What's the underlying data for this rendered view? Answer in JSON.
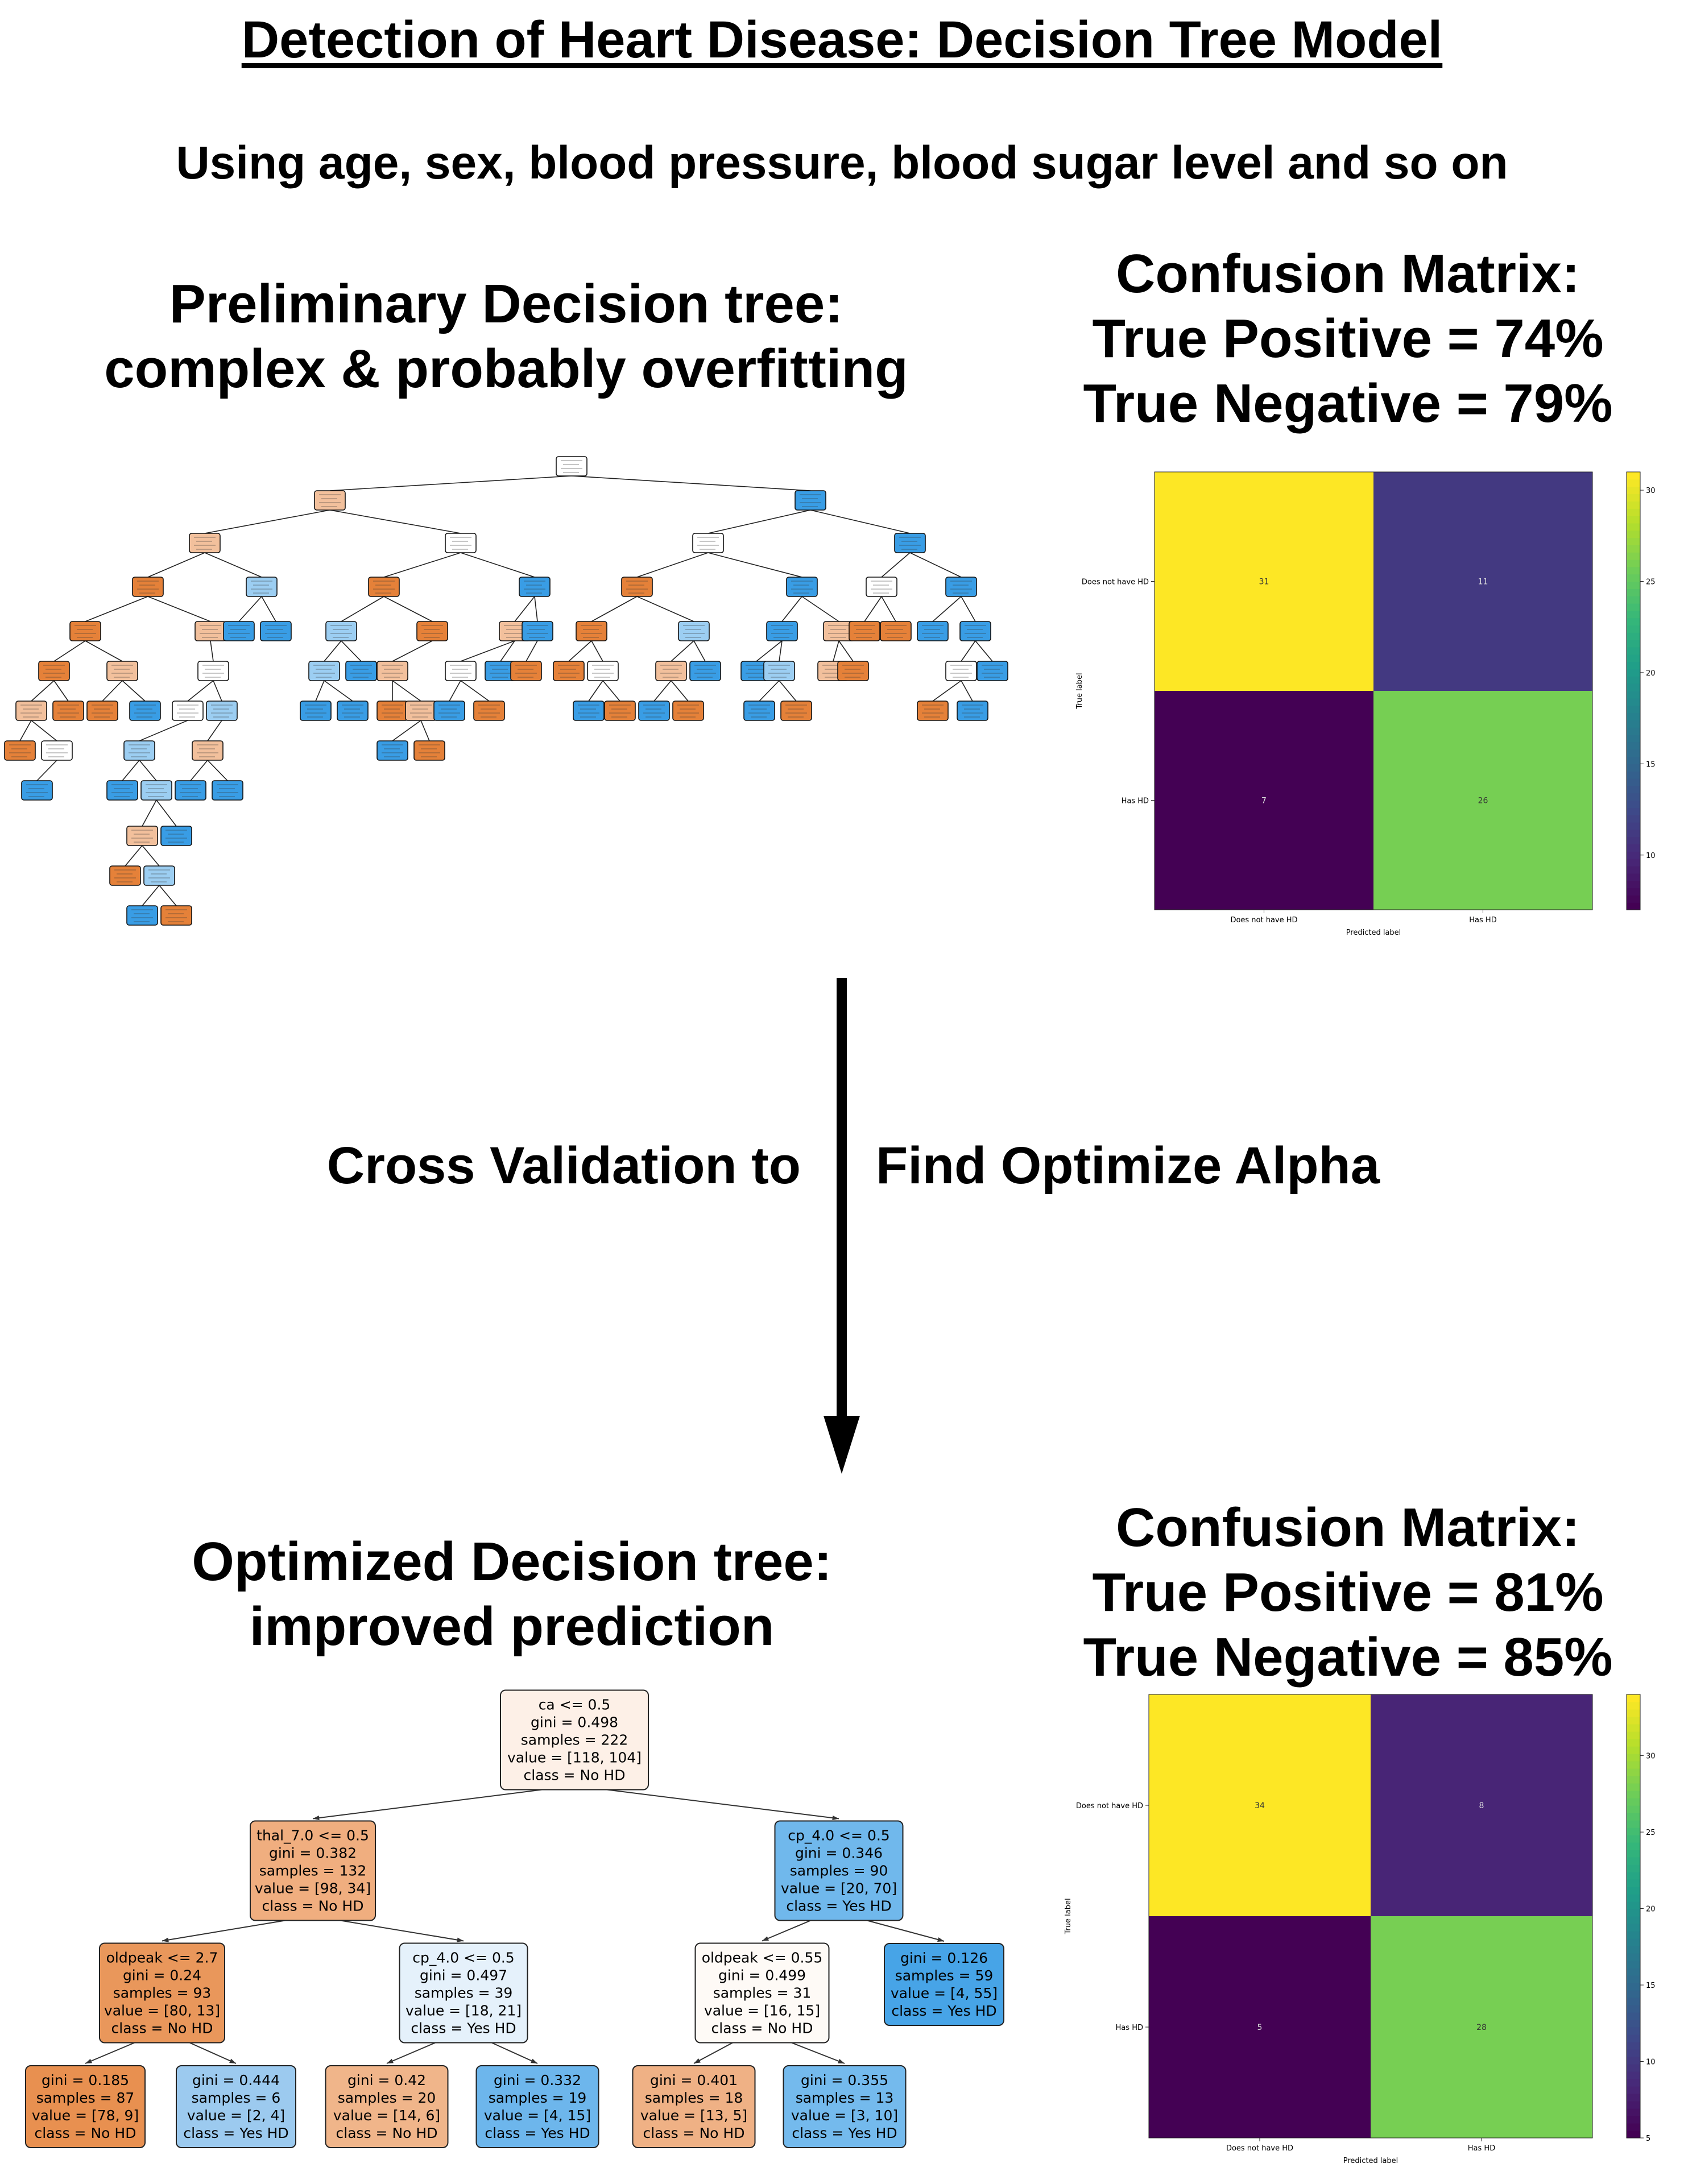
{
  "title": "Detection of Heart Disease: Decision Tree Model",
  "subtitle": "Using age, sex, blood pressure, blood sugar level and so on",
  "preliminary": {
    "heading_lines": [
      "Preliminary Decision tree:",
      "complex & probably overfitting"
    ]
  },
  "preliminary_matrix": {
    "heading_lines": [
      "Confusion Matrix:",
      "True Positive = 74%",
      "True Negative = 79%"
    ],
    "row_labels": [
      "Does not have HD",
      "Has HD"
    ],
    "col_labels": [
      "Does not have HD",
      "Has HD"
    ],
    "xlabel": "Predicted label",
    "ylabel": "True label",
    "cells": [
      [
        31,
        11
      ],
      [
        7,
        26
      ]
    ],
    "colorbar_ticks": [
      10,
      15,
      20,
      25,
      30
    ],
    "colorbar_range": [
      7,
      31
    ]
  },
  "transition": {
    "left_text": "Cross Validation to",
    "right_text": "Find Optimize Alpha"
  },
  "optimized": {
    "heading_lines": [
      "Optimized Decision tree:",
      "improved prediction"
    ]
  },
  "optimized_matrix": {
    "heading_lines": [
      "Confusion Matrix:",
      "True Positive = 81%",
      "True Negative = 85%"
    ],
    "row_labels": [
      "Does not have HD",
      "Has HD"
    ],
    "col_labels": [
      "Does not have HD",
      "Has HD"
    ],
    "xlabel": "Predicted label",
    "ylabel": "True label",
    "cells": [
      [
        34,
        8
      ],
      [
        5,
        28
      ]
    ],
    "colorbar_ticks": [
      5,
      10,
      15,
      20,
      25,
      30
    ],
    "colorbar_range": [
      5,
      34
    ]
  },
  "optimized_tree": {
    "colors": {
      "no_hd_dark": "#e89050",
      "no_hd_light": "#f3b88e",
      "no_hd_pale": "#fdf0e7",
      "yes_hd_dark": "#52a6e8",
      "yes_hd_light": "#9ccaef",
      "yes_hd_pale": "#e5f1fb",
      "neutral": "#fefaf6"
    },
    "nodes": [
      {
        "id": "root",
        "lines": [
          "ca <= 0.5",
          "gini = 0.498",
          "samples = 222",
          "value = [118, 104]",
          "class = No HD"
        ],
        "color": "#fdf0e7"
      },
      {
        "id": "n1",
        "lines": [
          "thal_7.0 <= 0.5",
          "gini = 0.382",
          "samples = 132",
          "value = [98, 34]",
          "class = No HD"
        ],
        "color": "#f0ae7f"
      },
      {
        "id": "n2",
        "lines": [
          "cp_4.0 <= 0.5",
          "gini = 0.346",
          "samples = 90",
          "value = [20, 70]",
          "class = Yes HD"
        ],
        "color": "#70b8ec"
      },
      {
        "id": "n3",
        "lines": [
          "oldpeak <= 2.7",
          "gini = 0.24",
          "samples = 93",
          "value = [80, 13]",
          "class = No HD"
        ],
        "color": "#e9975b"
      },
      {
        "id": "n4",
        "lines": [
          "cp_4.0 <= 0.5",
          "gini = 0.497",
          "samples = 39",
          "value = [18, 21]",
          "class = Yes HD"
        ],
        "color": "#e5f1fb"
      },
      {
        "id": "n5",
        "lines": [
          "oldpeak <= 0.55",
          "gini = 0.499",
          "samples = 31",
          "value = [16, 15]",
          "class = No HD"
        ],
        "color": "#fefaf6"
      },
      {
        "id": "n6",
        "lines": [
          "gini = 0.126",
          "samples = 59",
          "value = [4, 55]",
          "class = Yes HD"
        ],
        "color": "#47a4e7"
      },
      {
        "id": "n7",
        "lines": [
          "gini = 0.185",
          "samples = 87",
          "value = [78, 9]",
          "class = No HD"
        ],
        "color": "#e89050"
      },
      {
        "id": "n8",
        "lines": [
          "gini = 0.444",
          "samples = 6",
          "value = [2, 4]",
          "class = Yes HD"
        ],
        "color": "#9ccaef"
      },
      {
        "id": "n9",
        "lines": [
          "gini = 0.42",
          "samples = 20",
          "value = [14, 6]",
          "class = No HD"
        ],
        "color": "#f0b58a"
      },
      {
        "id": "n10",
        "lines": [
          "gini = 0.332",
          "samples = 19",
          "value = [4, 15]",
          "class = Yes HD"
        ],
        "color": "#6db6ec"
      },
      {
        "id": "n11",
        "lines": [
          "gini = 0.401",
          "samples = 18",
          "value = [13, 5]",
          "class = No HD"
        ],
        "color": "#efb185"
      },
      {
        "id": "n12",
        "lines": [
          "gini = 0.355",
          "samples = 13",
          "value = [3, 10]",
          "class = Yes HD"
        ],
        "color": "#74baed"
      }
    ],
    "edges": [
      [
        "root",
        "n1"
      ],
      [
        "root",
        "n2"
      ],
      [
        "n1",
        "n3"
      ],
      [
        "n1",
        "n4"
      ],
      [
        "n2",
        "n5"
      ],
      [
        "n2",
        "n6"
      ],
      [
        "n3",
        "n7"
      ],
      [
        "n3",
        "n8"
      ],
      [
        "n4",
        "n9"
      ],
      [
        "n4",
        "n10"
      ],
      [
        "n5",
        "n11"
      ],
      [
        "n5",
        "n12"
      ]
    ]
  },
  "preliminary_tree": {
    "colors": {
      "no_hd": "#e58139",
      "no_hd_light": "#f2c09c",
      "yes_hd": "#399de5",
      "yes_hd_light": "#9ccef2",
      "neutral": "#ffffff"
    }
  }
}
